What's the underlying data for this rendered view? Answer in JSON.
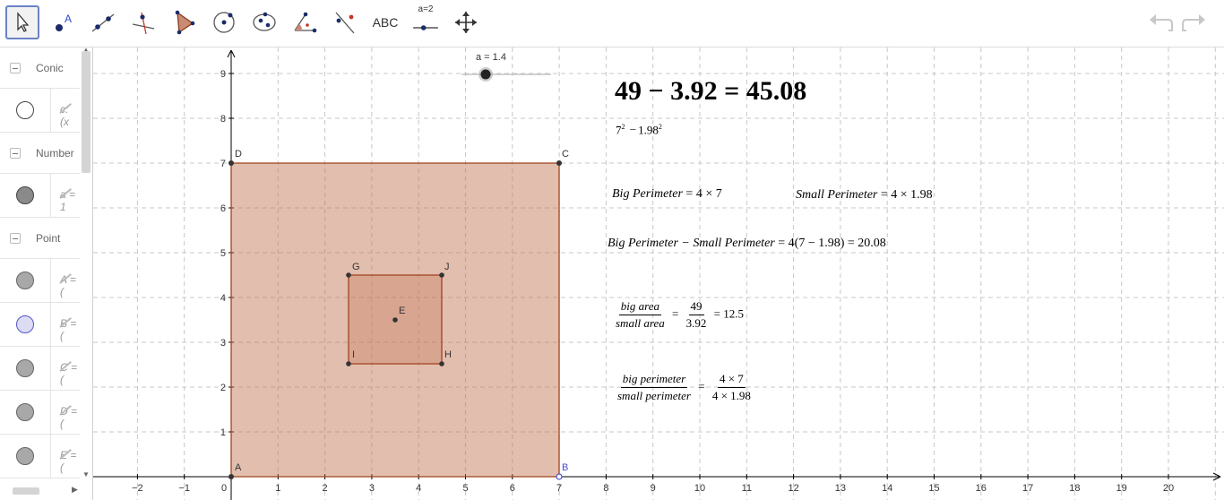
{
  "toolbar": {
    "text_tool_label": "ABC",
    "slider_tool_label": "a=2",
    "tools": [
      "move",
      "point",
      "line",
      "perpendicular-line",
      "polygon",
      "circle-center",
      "conic",
      "angle",
      "reflect",
      "text",
      "slider",
      "move-graphics"
    ]
  },
  "sidebar": {
    "groups": [
      {
        "label": "Conic"
      },
      {
        "label": "Number"
      },
      {
        "label": "Point"
      }
    ],
    "rows": [
      {
        "def": "c: (x"
      },
      {
        "def": "a = 1"
      },
      {
        "def": "A = ("
      },
      {
        "def": "B = ("
      },
      {
        "def": "C = ("
      },
      {
        "def": "D = ("
      },
      {
        "def": "E = ("
      }
    ]
  },
  "graph": {
    "x_ticks": [
      "−2",
      "−1",
      "0",
      "1",
      "2",
      "3",
      "4",
      "5",
      "6",
      "7",
      "8",
      "9",
      "10",
      "11",
      "12",
      "13",
      "14",
      "15",
      "16",
      "17",
      "18",
      "19",
      "20"
    ],
    "y_ticks": [
      "1",
      "2",
      "3",
      "4",
      "5",
      "6",
      "7",
      "8",
      "9"
    ],
    "points": {
      "A": "A",
      "B": "B",
      "C": "C",
      "D": "D",
      "E": "E",
      "G": "G",
      "H": "H",
      "I": "I",
      "J": "J"
    },
    "slider_label": "a = 1.4",
    "colors": {
      "polygon_fill": "#bf6e4d",
      "polygon_stroke": "#a0421b",
      "point_B": "#4b4bd6"
    }
  },
  "formulas": {
    "main": "49 − 3.92 = 45.08",
    "squares": {
      "a": "7",
      "b": "1.98",
      "exp": "2"
    },
    "big_perimeter": {
      "label": "Big Perimeter",
      "expr": "4 × 7"
    },
    "small_perimeter": {
      "label": "Small Perimeter",
      "expr": "4 × 1.98"
    },
    "perimeter_diff": {
      "left": "Big Perimeter − Small Perimeter",
      "right": "4(7 − 1.98) = 20.08"
    },
    "area_ratio": {
      "num": "big area",
      "den": "small area",
      "num2": "49",
      "den2": "3.92",
      "result": "= 12.5"
    },
    "perimeter_ratio": {
      "num": "big perimeter",
      "den": "small perimeter",
      "num2": "4 × 7",
      "den2": "4 × 1.98"
    }
  }
}
